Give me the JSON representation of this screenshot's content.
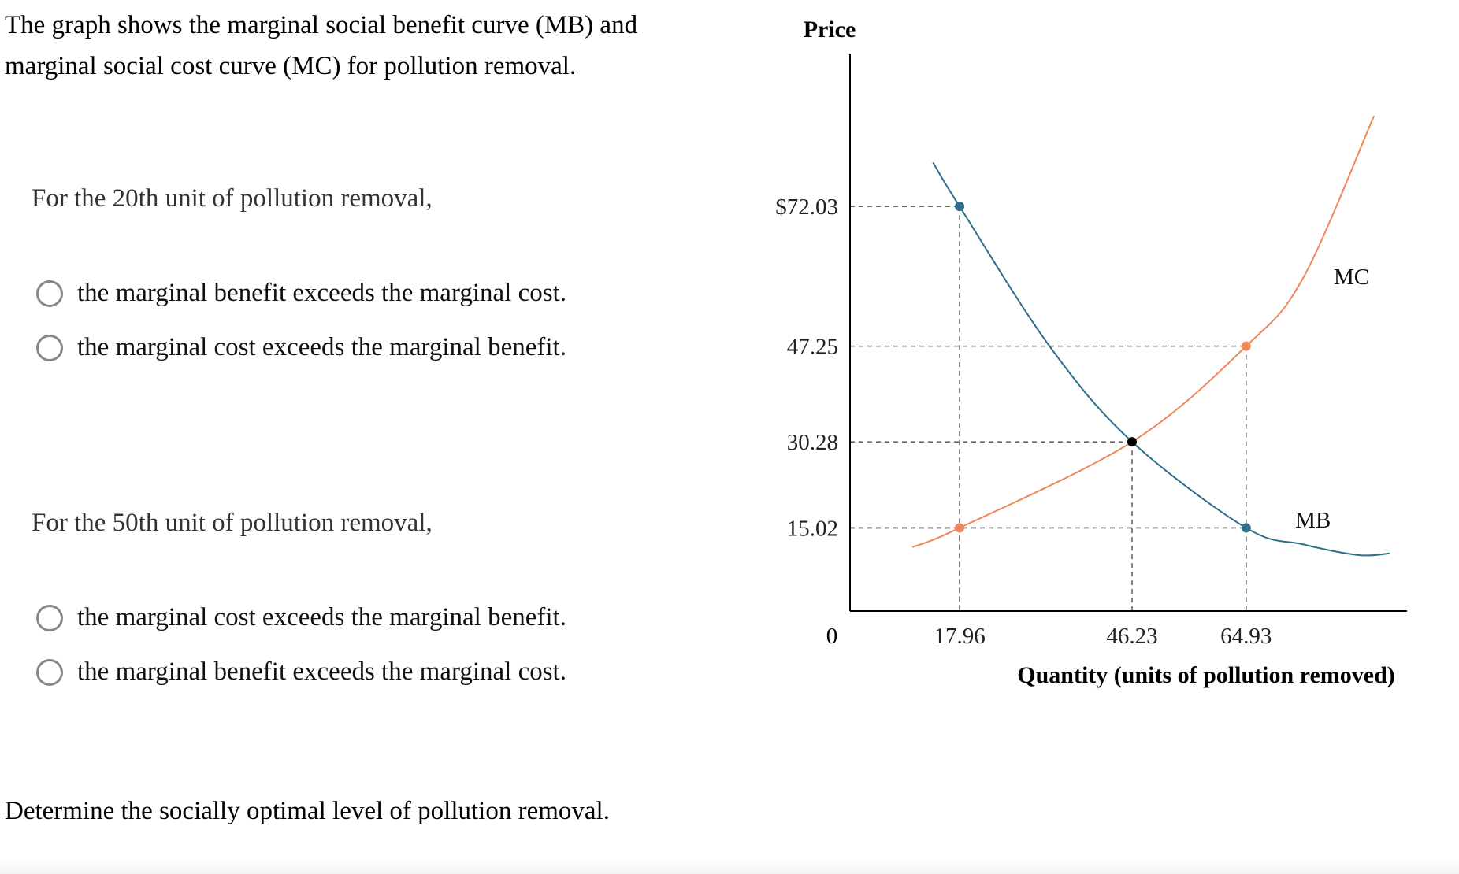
{
  "intro": "The graph shows the marginal social benefit curve (MB) and marginal social cost curve (MC) for pollution removal.",
  "question1": {
    "prompt": "For the 20th unit of pollution removal,",
    "options": [
      "the marginal benefit exceeds the marginal cost.",
      "the marginal cost exceeds the marginal benefit."
    ]
  },
  "question2": {
    "prompt": "For the 50th unit of pollution removal,",
    "options": [
      "the marginal cost exceeds the marginal benefit.",
      "the marginal benefit exceeds the marginal cost."
    ]
  },
  "question3": {
    "prompt": "Determine the socially optimal level of pollution removal."
  },
  "chart_data": {
    "type": "line",
    "title": "",
    "xlabel": "Quantity (units of pollution removed)",
    "ylabel": "Price",
    "xlim": [
      0,
      91.3
    ],
    "ylim": [
      0,
      99
    ],
    "origin_label": "0",
    "x_ticks": [
      {
        "value": 17.96,
        "label": "17.96"
      },
      {
        "value": 46.23,
        "label": "46.23"
      },
      {
        "value": 64.93,
        "label": "64.93"
      }
    ],
    "y_ticks": [
      {
        "value": 72.03,
        "label": "$72.03"
      },
      {
        "value": 47.25,
        "label": "47.25"
      },
      {
        "value": 30.28,
        "label": "30.28"
      },
      {
        "value": 15.02,
        "label": "15.02"
      }
    ],
    "series": [
      {
        "name": "MB",
        "color": "#2e6f8a",
        "points": [
          [
            13.6,
            79.8
          ],
          [
            17.96,
            72.03
          ],
          [
            32.7,
            47.25
          ],
          [
            46.23,
            30.28
          ],
          [
            64.93,
            15.02
          ],
          [
            74.3,
            12.1
          ],
          [
            83.4,
            10.2
          ],
          [
            88.5,
            10.5
          ]
        ]
      },
      {
        "name": "MC",
        "color": "#f0875a",
        "points": [
          [
            10.2,
            11.6
          ],
          [
            17.96,
            15.02
          ],
          [
            46.23,
            30.28
          ],
          [
            64.93,
            47.25
          ],
          [
            74.3,
            59.4
          ],
          [
            85.9,
            88.1
          ]
        ]
      }
    ],
    "markers": [
      {
        "x": 17.96,
        "y": 72.03,
        "color": "#2e6f8a"
      },
      {
        "x": 64.93,
        "y": 15.02,
        "color": "#2e6f8a"
      },
      {
        "x": 17.96,
        "y": 15.02,
        "color": "#f0875a"
      },
      {
        "x": 64.93,
        "y": 47.25,
        "color": "#f0875a"
      },
      {
        "x": 46.23,
        "y": 30.28,
        "color": "#000000"
      }
    ],
    "guides": [
      [
        17.96,
        72.03
      ],
      [
        17.96,
        15.02
      ],
      [
        46.23,
        30.28
      ],
      [
        64.93,
        47.25
      ],
      [
        64.93,
        15.02
      ]
    ],
    "curve_labels": [
      {
        "text": "MC",
        "x": 82.2,
        "y": 59.6
      },
      {
        "text": "MB",
        "x": 75.9,
        "y": 16.5
      }
    ]
  }
}
